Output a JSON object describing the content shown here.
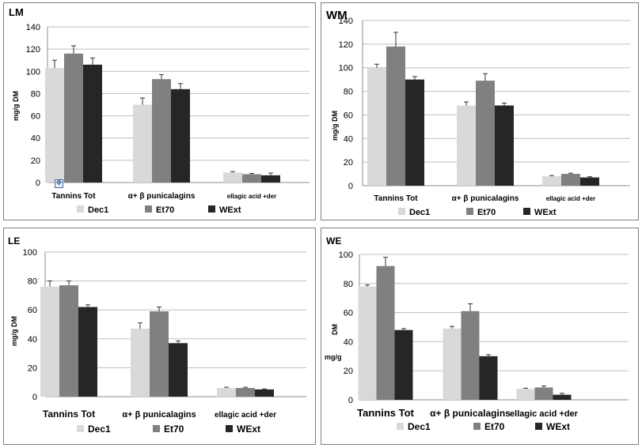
{
  "colors": {
    "Dec1": "#d9d9d9",
    "Et70": "#808080",
    "WExt": "#262626",
    "grid": "#bfbfbf",
    "axis": "#8c8c8c"
  },
  "legend": [
    "Dec1",
    "Et70",
    "WExt"
  ],
  "icons": {
    "anchor": "move-anchor-icon"
  },
  "chart_data": [
    {
      "type": "bar",
      "title": "LM",
      "ylabel": "mg/g  DM",
      "categories": [
        "Tannins Tot",
        "α+ β punicalagins",
        "ellagic  acid  +der"
      ],
      "ylim": [
        0,
        140
      ],
      "yticks": [
        0,
        20,
        40,
        60,
        80,
        100,
        120,
        140
      ],
      "series": [
        {
          "name": "Dec1",
          "values": [
            103,
            70,
            9
          ],
          "errors": [
            7,
            6,
            0.8
          ]
        },
        {
          "name": "Et70",
          "values": [
            116,
            93,
            7.5
          ],
          "errors": [
            7,
            4,
            0.7
          ]
        },
        {
          "name": "WExt",
          "values": [
            106,
            84,
            6.5
          ],
          "errors": [
            6,
            5,
            2
          ]
        }
      ],
      "grid": true,
      "legend_position": "bottom"
    },
    {
      "type": "bar",
      "title": "WM",
      "ylabel": "mg/g  DM",
      "categories": [
        "Tannins Tot",
        "α+ β punicalagins",
        "ellagic  acid  +der"
      ],
      "ylim": [
        0,
        140
      ],
      "yticks": [
        0,
        20,
        40,
        60,
        80,
        100,
        120,
        140
      ],
      "series": [
        {
          "name": "Dec1",
          "values": [
            100,
            68,
            8
          ],
          "errors": [
            3,
            3,
            0.6
          ]
        },
        {
          "name": "Et70",
          "values": [
            118,
            89,
            10
          ],
          "errors": [
            12,
            6,
            0.6
          ]
        },
        {
          "name": "WExt",
          "values": [
            90,
            68,
            7
          ],
          "errors": [
            2.5,
            2,
            0.6
          ]
        }
      ],
      "grid": true,
      "legend_position": "bottom"
    },
    {
      "type": "bar",
      "title": "LE",
      "ylabel": "mg/g DM",
      "categories": [
        "Tannins Tot",
        "α+ β punicalagins",
        "ellagic  acid +der"
      ],
      "ylim": [
        0,
        100
      ],
      "yticks": [
        0,
        20,
        40,
        60,
        80,
        100
      ],
      "series": [
        {
          "name": "Dec1",
          "values": [
            76,
            47,
            6
          ],
          "errors": [
            4,
            4,
            0.5
          ]
        },
        {
          "name": "Et70",
          "values": [
            77,
            59,
            6
          ],
          "errors": [
            3,
            3,
            0.5
          ]
        },
        {
          "name": "WExt",
          "values": [
            62,
            37,
            5
          ],
          "errors": [
            1.5,
            1.5,
            0.3
          ]
        }
      ],
      "grid": true,
      "legend_position": "bottom"
    },
    {
      "type": "bar",
      "title": "WE",
      "ylabel_top": "DM",
      "ylabel_bottom": "mg/g",
      "categories": [
        "Tannins Tot",
        "α+ β punicalagins",
        "ellagic  acid  +der"
      ],
      "ylim": [
        0,
        100
      ],
      "yticks": [
        0,
        20,
        40,
        60,
        80,
        100
      ],
      "series": [
        {
          "name": "Dec1",
          "values": [
            78,
            49,
            7.5
          ],
          "errors": [
            1,
            1.5,
            0.5
          ]
        },
        {
          "name": "Et70",
          "values": [
            92,
            61,
            8.5
          ],
          "errors": [
            6,
            5,
            1
          ]
        },
        {
          "name": "WExt",
          "values": [
            48,
            30,
            3.5
          ],
          "errors": [
            1,
            1,
            1
          ]
        }
      ],
      "grid": true,
      "legend_position": "bottom"
    }
  ]
}
